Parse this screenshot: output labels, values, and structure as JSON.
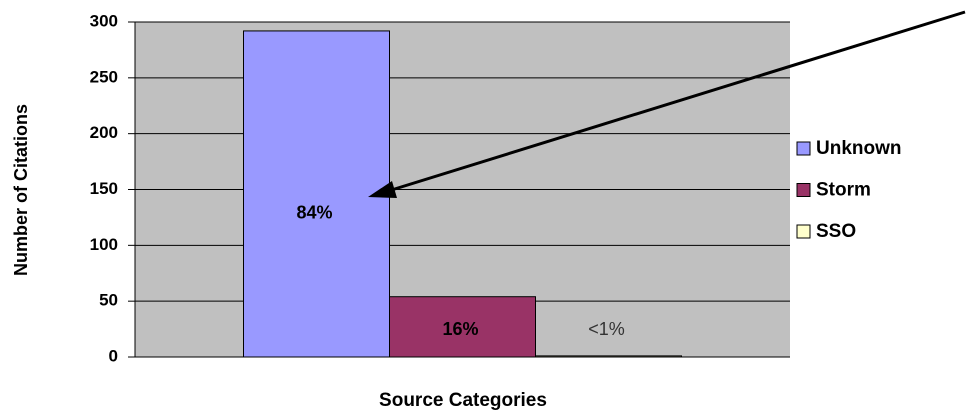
{
  "chart_data": {
    "type": "bar",
    "x_label": "Source Categories",
    "y_label": "Number of Citations",
    "categories": [
      null
    ],
    "series": [
      {
        "name": "Unknown",
        "color": "#9999ff",
        "values": [
          292
        ],
        "value_labels": [
          "84%"
        ]
      },
      {
        "name": "Storm",
        "color": "#993366",
        "values": [
          54
        ],
        "value_labels": [
          "16%"
        ]
      },
      {
        "name": "SSO",
        "color": "#ffffcc",
        "values": [
          1
        ],
        "value_labels": [
          "<1%"
        ]
      }
    ],
    "ylim": [
      0,
      300
    ],
    "yticks": [
      0,
      50,
      100,
      150,
      200,
      250,
      300
    ],
    "grid": true,
    "legend": "right"
  }
}
